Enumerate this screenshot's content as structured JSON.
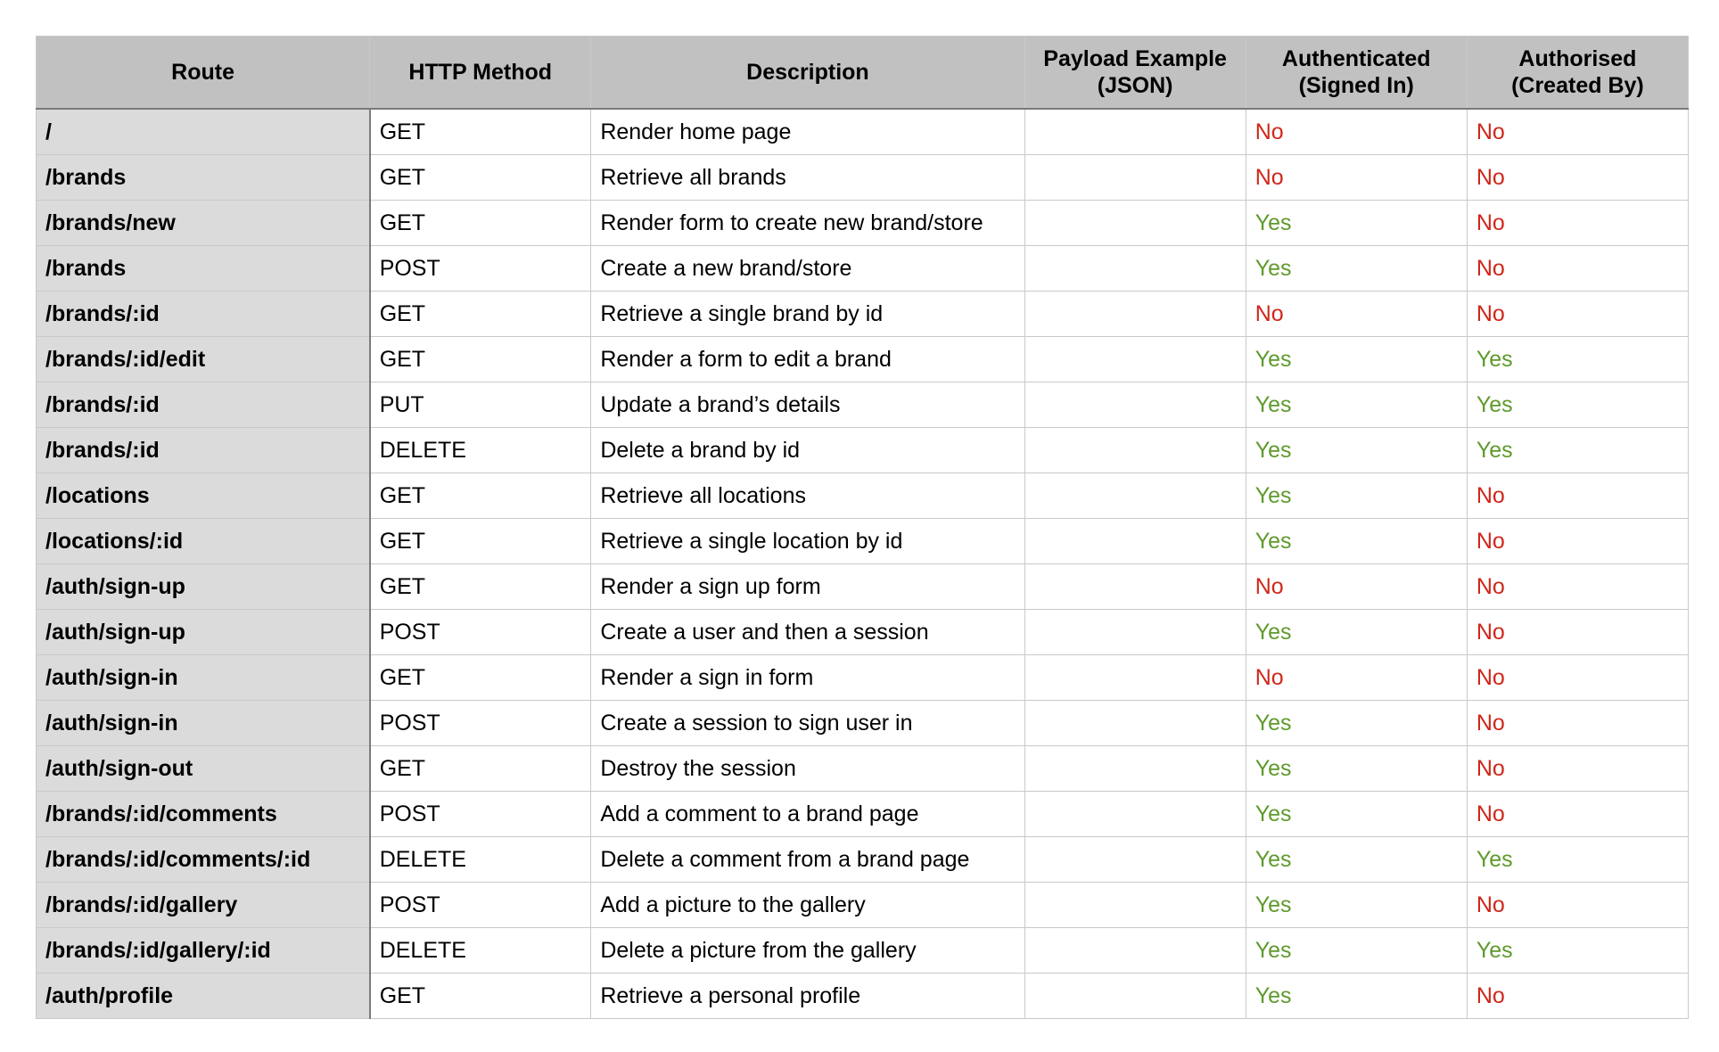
{
  "colors": {
    "header_bg": "#c0c1c0",
    "route_col_bg": "#dbdbdb",
    "yes": "#5f9a2c",
    "no": "#d0271a"
  },
  "table": {
    "headers": [
      "Route",
      "HTTP Method",
      "Description",
      "Payload Example (JSON)",
      "Authenticated (Signed In)",
      "Authorised (Created By)"
    ],
    "rows": [
      {
        "route": "/",
        "method": "GET",
        "description": "Render home page",
        "payload": "",
        "authenticated": "No",
        "authorised": "No"
      },
      {
        "route": "/brands",
        "method": "GET",
        "description": "Retrieve all brands",
        "payload": "",
        "authenticated": "No",
        "authorised": "No"
      },
      {
        "route": "/brands/new",
        "method": "GET",
        "description": "Render form to create new brand/store",
        "payload": "",
        "authenticated": "Yes",
        "authorised": "No"
      },
      {
        "route": "/brands",
        "method": "POST",
        "description": "Create a new brand/store",
        "payload": "",
        "authenticated": "Yes",
        "authorised": "No"
      },
      {
        "route": "/brands/:id",
        "method": "GET",
        "description": "Retrieve a single brand by id",
        "payload": "",
        "authenticated": "No",
        "authorised": "No"
      },
      {
        "route": "/brands/:id/edit",
        "method": "GET",
        "description": "Render a form to edit a brand",
        "payload": "",
        "authenticated": "Yes",
        "authorised": "Yes"
      },
      {
        "route": "/brands/:id",
        "method": "PUT",
        "description": "Update a brand’s details",
        "payload": "",
        "authenticated": "Yes",
        "authorised": "Yes"
      },
      {
        "route": "/brands/:id",
        "method": "DELETE",
        "description": "Delete a brand by id",
        "payload": "",
        "authenticated": "Yes",
        "authorised": "Yes"
      },
      {
        "route": "/locations",
        "method": "GET",
        "description": "Retrieve all locations",
        "payload": "",
        "authenticated": "Yes",
        "authorised": "No"
      },
      {
        "route": "/locations/:id",
        "method": "GET",
        "description": "Retrieve a single location by id",
        "payload": "",
        "authenticated": "Yes",
        "authorised": "No"
      },
      {
        "route": "/auth/sign-up",
        "method": "GET",
        "description": "Render a sign up form",
        "payload": "",
        "authenticated": "No",
        "authorised": "No"
      },
      {
        "route": "/auth/sign-up",
        "method": "POST",
        "description": "Create a user and then a session",
        "payload": "",
        "authenticated": "Yes",
        "authorised": "No"
      },
      {
        "route": "/auth/sign-in",
        "method": "GET",
        "description": "Render a sign in form",
        "payload": "",
        "authenticated": "No",
        "authorised": "No"
      },
      {
        "route": "/auth/sign-in",
        "method": "POST",
        "description": "Create a session to sign user in",
        "payload": "",
        "authenticated": "Yes",
        "authorised": "No"
      },
      {
        "route": "/auth/sign-out",
        "method": "GET",
        "description": "Destroy the session",
        "payload": "",
        "authenticated": "Yes",
        "authorised": "No"
      },
      {
        "route": "/brands/:id/comments",
        "method": "POST",
        "description": "Add a comment to a brand page",
        "payload": "",
        "authenticated": "Yes",
        "authorised": "No"
      },
      {
        "route": "/brands/:id/comments/:id",
        "method": "DELETE",
        "description": "Delete a comment from a brand page",
        "payload": "",
        "authenticated": "Yes",
        "authorised": "Yes"
      },
      {
        "route": "/brands/:id/gallery",
        "method": "POST",
        "description": "Add a picture to the gallery",
        "payload": "",
        "authenticated": "Yes",
        "authorised": "No"
      },
      {
        "route": "/brands/:id/gallery/:id",
        "method": "DELETE",
        "description": "Delete a picture from the gallery",
        "payload": "",
        "authenticated": "Yes",
        "authorised": "Yes"
      },
      {
        "route": "/auth/profile",
        "method": "GET",
        "description": "Retrieve a personal profile",
        "payload": "",
        "authenticated": "Yes",
        "authorised": "No"
      }
    ]
  }
}
